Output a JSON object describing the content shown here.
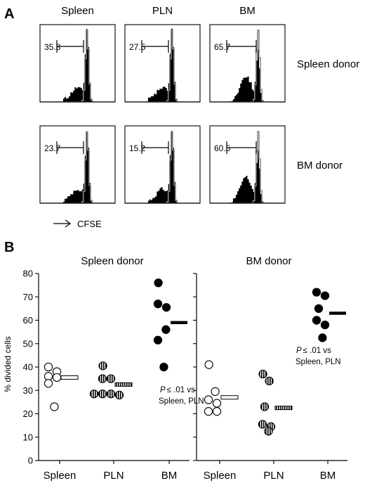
{
  "panel_a": {
    "label": "A",
    "columns": [
      "Spleen",
      "PLN",
      "BM"
    ],
    "rows": [
      "Spleen donor",
      "BM donor"
    ],
    "values": [
      [
        "35.8",
        "27.5",
        "65.7"
      ],
      [
        "23.7",
        "15.2",
        "60.5"
      ]
    ],
    "arrow_label": "CFSE"
  },
  "panel_b": {
    "label": "B",
    "ylabel": "% divided cells",
    "annotation_line1": "≤ .01 vs",
    "annotation_p": "P",
    "annotation_line2": "Spleen, PLN"
  },
  "colors": {
    "open": "#ffffff",
    "filled": "#000000",
    "histogram_gray": "#888888"
  },
  "chart_data": [
    {
      "type": "scatter",
      "title": "Spleen donor",
      "categories": [
        "Spleen",
        "PLN",
        "BM"
      ],
      "ylabel": "% divided cells",
      "ylim": [
        0,
        80
      ],
      "yticks": [
        0,
        10,
        20,
        30,
        40,
        50,
        60,
        70,
        80
      ],
      "series": [
        {
          "category": "Spleen",
          "marker": "open",
          "values": [
            38,
            40,
            35.5,
            36,
            33,
            23
          ],
          "mean": 35.5
        },
        {
          "category": "PLN",
          "marker": "striped",
          "values": [
            40.5,
            35,
            35,
            28.5,
            28.5,
            28.5,
            28
          ],
          "mean": 32.5
        },
        {
          "category": "BM",
          "marker": "filled",
          "values": [
            76,
            67,
            65.5,
            56,
            51.5,
            40
          ],
          "mean": 59
        }
      ]
    },
    {
      "type": "scatter",
      "title": "BM donor",
      "categories": [
        "Spleen",
        "PLN",
        "BM"
      ],
      "ylabel": "",
      "ylim": [
        0,
        80
      ],
      "yticks": [
        0,
        10,
        20,
        30,
        40,
        50,
        60,
        70,
        80
      ],
      "series": [
        {
          "category": "Spleen",
          "marker": "open",
          "values": [
            41,
            29.5,
            26,
            24.5,
            21,
            21
          ],
          "mean": 27
        },
        {
          "category": "PLN",
          "marker": "striped",
          "values": [
            37,
            34,
            23,
            15.5,
            14.5,
            12.5
          ],
          "mean": 22.5
        },
        {
          "category": "BM",
          "marker": "filled",
          "values": [
            72,
            70.5,
            65,
            60,
            58,
            52.5
          ],
          "mean": 63
        }
      ]
    }
  ]
}
